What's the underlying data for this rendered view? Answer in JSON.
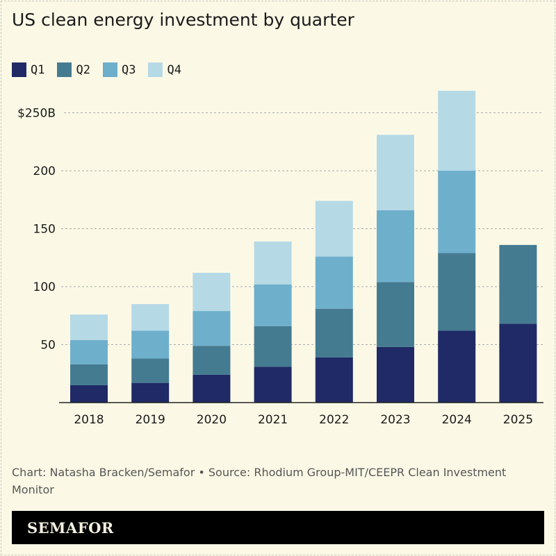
{
  "chart_data": {
    "type": "bar",
    "stacked": true,
    "title": "US clean energy investment by quarter",
    "categories": [
      "2018",
      "2019",
      "2020",
      "2021",
      "2022",
      "2023",
      "2024",
      "2025"
    ],
    "series": [
      {
        "name": "Q1",
        "color": "#1f2a66",
        "values": [
          15,
          17,
          24,
          31,
          39,
          48,
          62,
          68
        ]
      },
      {
        "name": "Q2",
        "color": "#457b91",
        "values": [
          18,
          21,
          25,
          35,
          42,
          56,
          67,
          68
        ]
      },
      {
        "name": "Q3",
        "color": "#6eafcc",
        "values": [
          21,
          24,
          30,
          36,
          45,
          62,
          71,
          null
        ]
      },
      {
        "name": "Q4",
        "color": "#b6d9e6",
        "values": [
          22,
          23,
          33,
          37,
          48,
          65,
          69,
          null
        ]
      }
    ],
    "yticks": [
      50,
      100,
      150,
      200,
      250
    ],
    "ytick_labels": [
      "50",
      "100",
      "150",
      "200",
      "$250B"
    ],
    "ylim": [
      0,
      270
    ],
    "grid": true,
    "legend": "top-left"
  },
  "footer": {
    "credit": "Chart: Natasha Bracken/Semafor • Source: Rhodium Group-MIT/CEEPR Clean Investment Monitor"
  },
  "brand": "SEMAFOR"
}
